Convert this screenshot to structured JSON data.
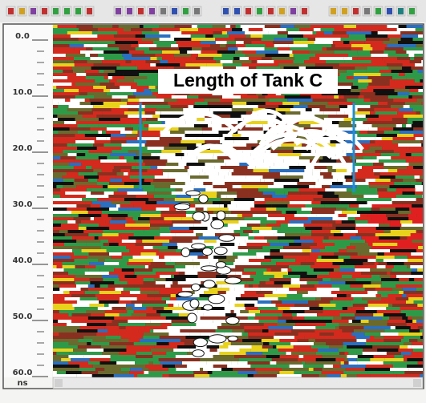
{
  "axis": {
    "ticks": [
      "0.0",
      "10.0",
      "20.0",
      "30.0",
      "40.0",
      "50.0",
      "60.0"
    ],
    "unit": "ns"
  },
  "annotation": "Length of Tank C"
}
